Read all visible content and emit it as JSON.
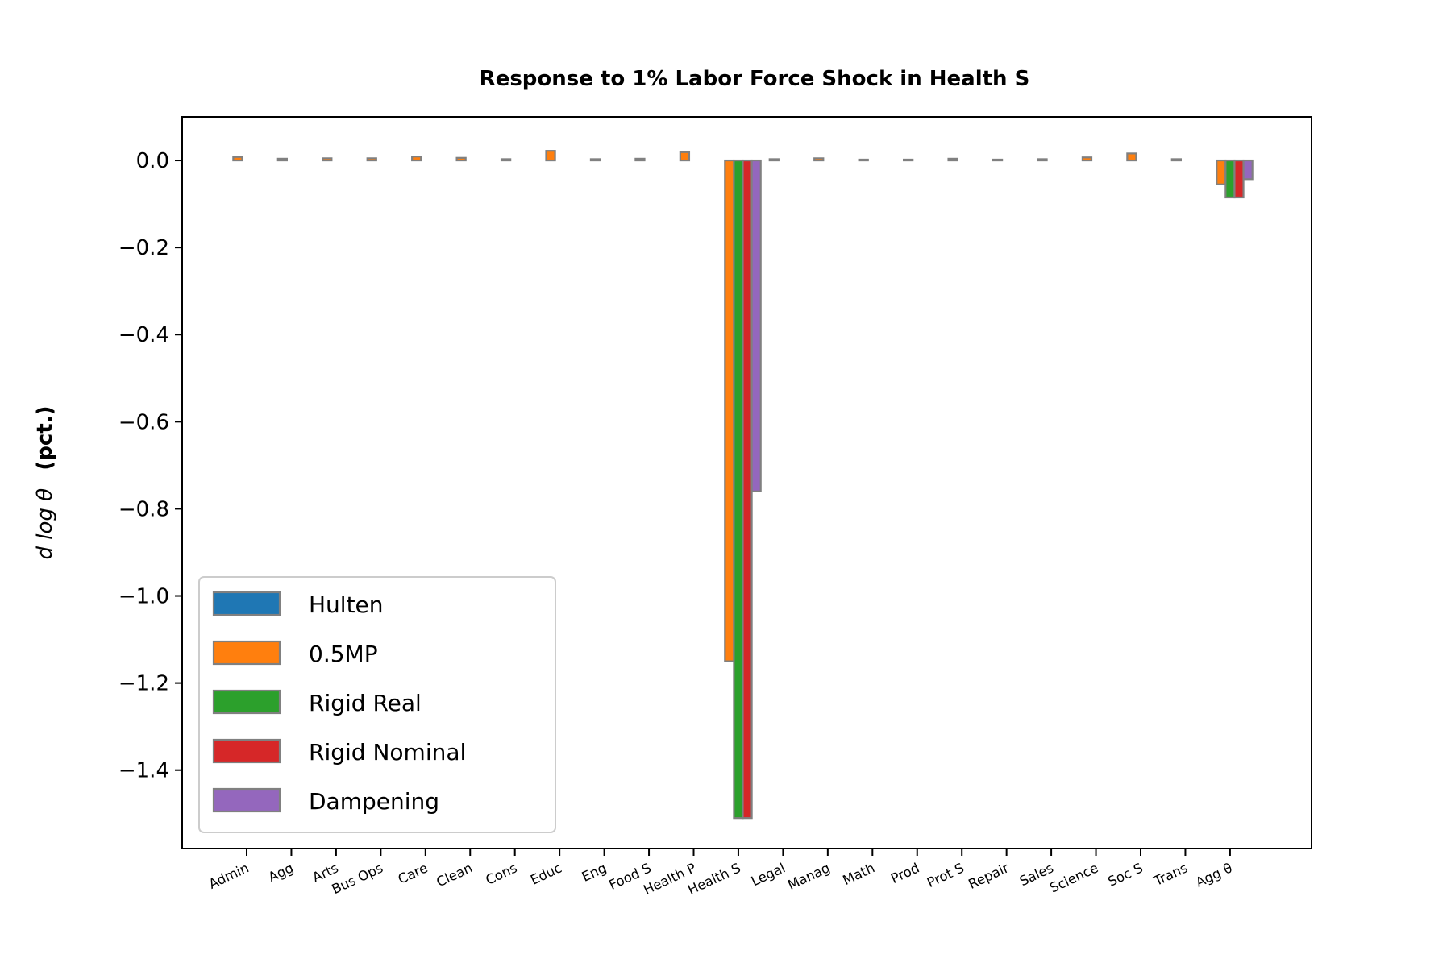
{
  "chart_data": {
    "type": "bar",
    "title": "Response to 1% Labor Force Shock in Health S",
    "xlabel": "",
    "ylabel": "d log θ",
    "ylabel_suffix": "(pct.)",
    "ylim": [
      -1.58,
      0.1
    ],
    "yticks": [
      "0.0",
      "−0.2",
      "−0.4",
      "−0.6",
      "−0.8",
      "−1.0",
      "−1.2",
      "−1.4"
    ],
    "ytick_values": [
      0.0,
      -0.2,
      -0.4,
      -0.6,
      -0.8,
      -1.0,
      -1.2,
      -1.4
    ],
    "legend_position": "lower-left",
    "bar_edge_color": "#808080",
    "grid": false,
    "categories": [
      "Admin",
      "Agg",
      "Arts",
      "Bus Ops",
      "Care",
      "Clean",
      "Cons",
      "Educ",
      "Eng",
      "Food S",
      "Health P",
      "Health S",
      "Legal",
      "Manag",
      "Math",
      "Prod",
      "Prot S",
      "Repair",
      "Sales",
      "Science",
      "Soc S",
      "Trans",
      "Agg θ"
    ],
    "series": [
      {
        "name": "Hulten",
        "color": "#1f77b4",
        "values": [
          0,
          0,
          0,
          0,
          0,
          0,
          0,
          0,
          0,
          0,
          0,
          0,
          0,
          0,
          0,
          0,
          0,
          0,
          0,
          0,
          0,
          0,
          0
        ]
      },
      {
        "name": "0.5MP",
        "color": "#ff7f0e",
        "values": [
          0.008,
          0.004,
          0.005,
          0.005,
          0.009,
          0.006,
          0.003,
          0.022,
          0.003,
          0.004,
          0.019,
          -1.15,
          0.003,
          0.005,
          0.002,
          0.002,
          0.004,
          0.002,
          0.003,
          0.007,
          0.016,
          0.003,
          -0.055
        ]
      },
      {
        "name": "Rigid Real",
        "color": "#2ca02c",
        "values": [
          0,
          0,
          0,
          0,
          0,
          0,
          0,
          0,
          0,
          0,
          0,
          -1.51,
          0,
          0,
          0,
          0,
          0,
          0,
          0,
          0,
          0,
          0,
          -0.085
        ]
      },
      {
        "name": "Rigid Nominal",
        "color": "#d62728",
        "values": [
          0,
          0,
          0,
          0,
          0,
          0,
          0,
          0,
          0,
          0,
          0,
          -1.51,
          0,
          0,
          0,
          0,
          0,
          0,
          0,
          0,
          0,
          0,
          -0.085
        ]
      },
      {
        "name": "Dampening",
        "color": "#9467bd",
        "values": [
          0,
          0,
          0,
          0,
          0,
          0,
          0,
          0,
          0,
          0,
          0,
          -0.76,
          0,
          0,
          0,
          0,
          0,
          0,
          0,
          0,
          0,
          0,
          -0.043
        ]
      }
    ]
  }
}
